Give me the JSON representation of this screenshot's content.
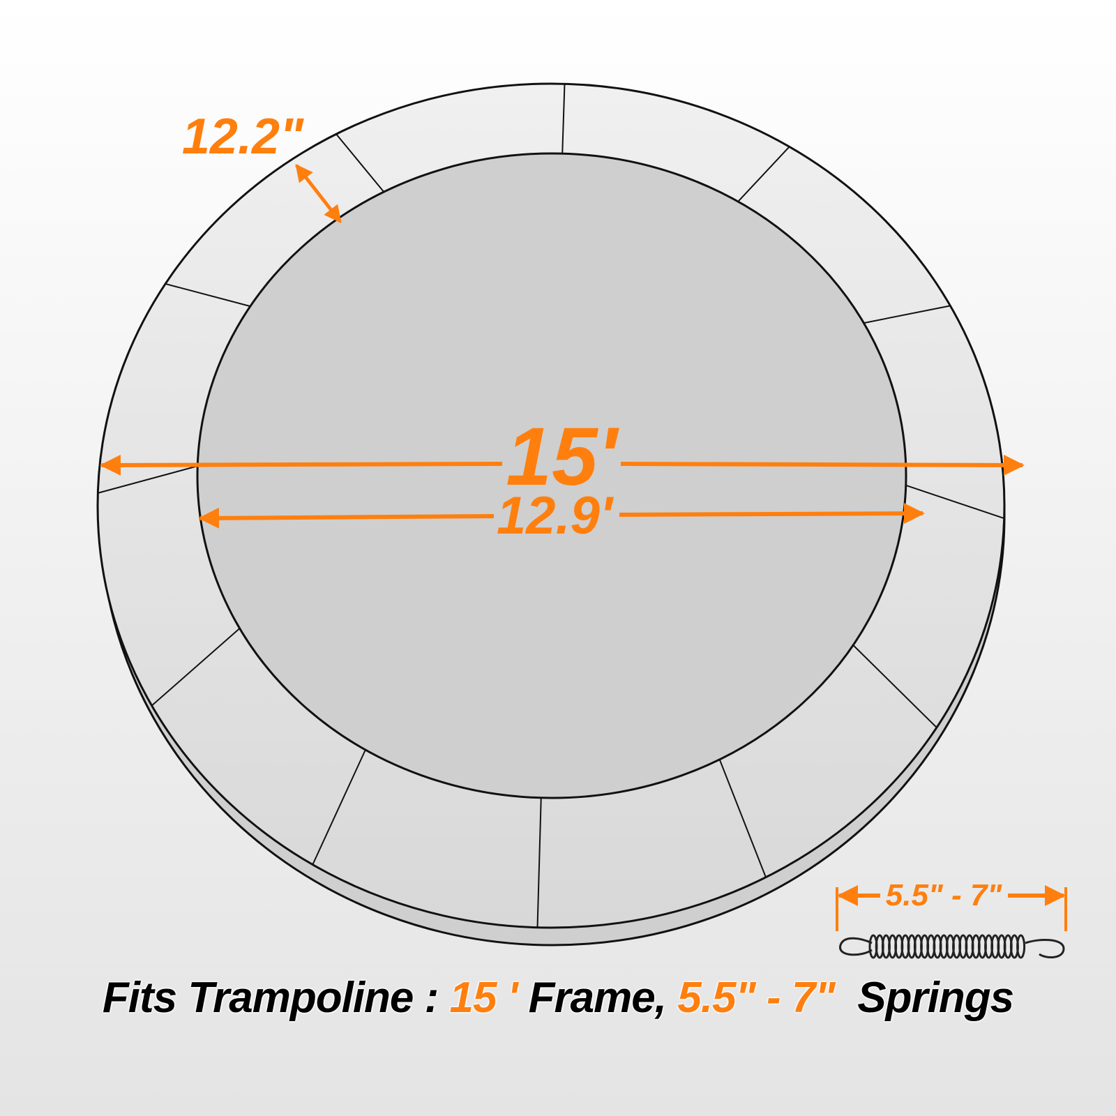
{
  "colors": {
    "accent": "#ff7f0e",
    "outline": "#111111",
    "pad": "#e0e0e0"
  },
  "labels": {
    "pad_width": "12.2\"",
    "frame_diameter": "15'",
    "mat_diameter": "12.9'",
    "spring_length": "5.5\" - 7\""
  },
  "caption": {
    "prefix": "Fits Trampoline : ",
    "frame_value": "15 '",
    "frame_word": " Frame, ",
    "spring_value": "5.5\" - 7\"",
    "suffix": "  Springs"
  },
  "icons": {
    "spring": "spring-icon",
    "pad": "trampoline-pad-ring"
  }
}
